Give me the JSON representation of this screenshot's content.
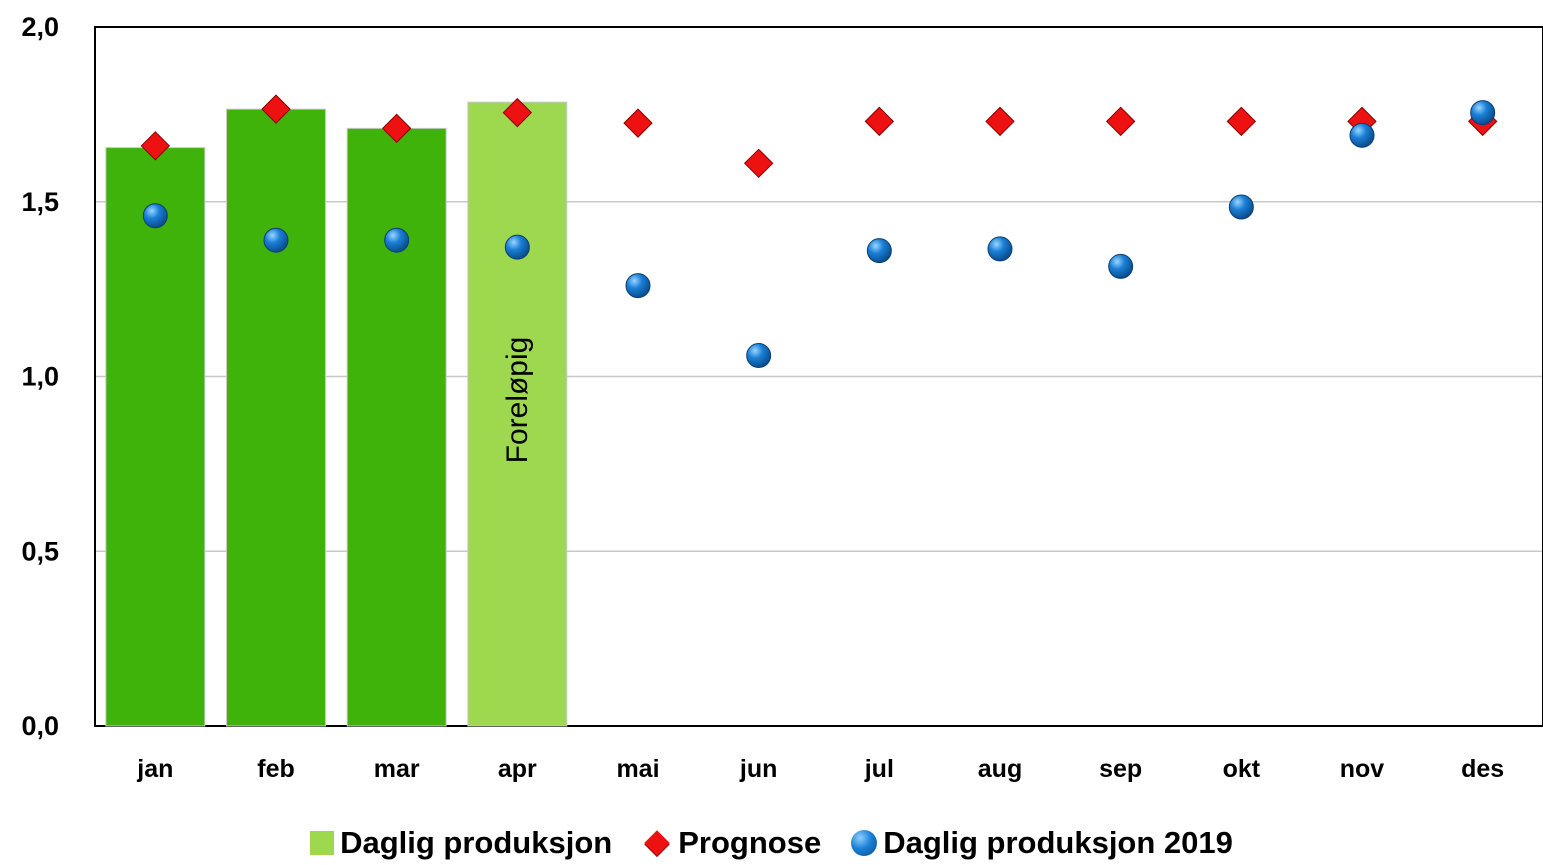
{
  "chart_data": {
    "type": "bar",
    "categories": [
      "jan",
      "feb",
      "mar",
      "apr",
      "mai",
      "jun",
      "jul",
      "aug",
      "sep",
      "okt",
      "nov",
      "des"
    ],
    "series": [
      {
        "name": "Daglig produksjon",
        "kind": "bar",
        "values": [
          1.655,
          1.765,
          1.71,
          1.785,
          null,
          null,
          null,
          null,
          null,
          null,
          null,
          null
        ],
        "colors": [
          "#40b30a",
          "#40b30a",
          "#40b30a",
          "#9ed84f"
        ]
      },
      {
        "name": "Prognose",
        "kind": "marker-diamond",
        "color": "#ee1111",
        "values": [
          1.66,
          1.765,
          1.71,
          1.755,
          1.725,
          1.61,
          1.73,
          1.73,
          1.73,
          1.73,
          1.73,
          1.73
        ]
      },
      {
        "name": "Daglig produksjon 2019",
        "kind": "marker-circle",
        "color": "#1a7fd6",
        "values": [
          1.46,
          1.39,
          1.39,
          1.37,
          1.26,
          1.06,
          1.36,
          1.365,
          1.315,
          1.485,
          1.69,
          1.755
        ]
      }
    ],
    "annotation": {
      "text": "Foreløpig",
      "category": "apr"
    },
    "y_ticks": [
      "0,0",
      "0,5",
      "1,0",
      "1,5",
      "2,0"
    ],
    "ylim": [
      0,
      2.0
    ],
    "grid": true,
    "legend": "bottom"
  }
}
